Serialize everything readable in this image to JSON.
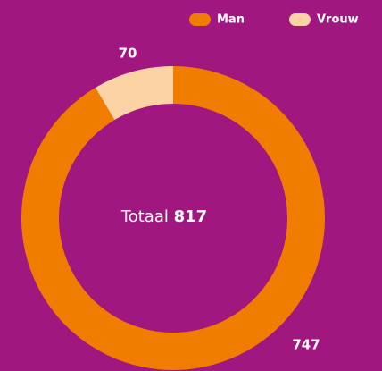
{
  "chart_data": {
    "type": "donut",
    "categories": [
      "Man",
      "Vrouw"
    ],
    "values": [
      747,
      70
    ],
    "colors": [
      "#f07d00",
      "#fbd3a5"
    ],
    "center_label": "Totaal",
    "total": 817,
    "legend": "top-right"
  }
}
